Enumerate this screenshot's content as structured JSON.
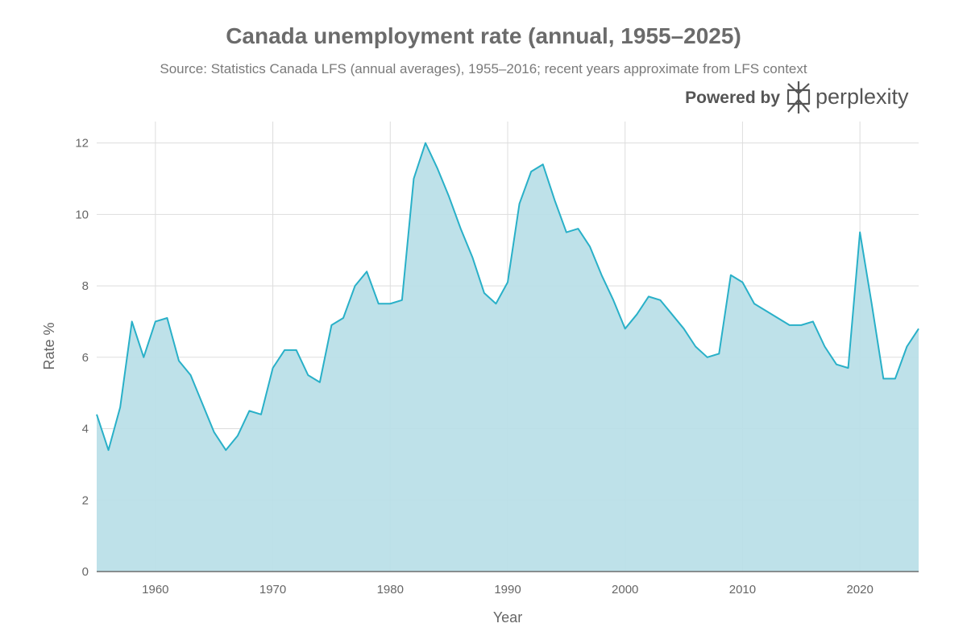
{
  "chart_data": {
    "type": "area",
    "title": "Canada unemployment rate (annual, 1955–2025)",
    "subtitle": "Source: Statistics Canada LFS (annual averages), 1955–2016; recent years approximate from LFS context",
    "xlabel": "Year",
    "ylabel": "Rate %",
    "xlim": [
      1955,
      2025
    ],
    "ylim": [
      0,
      12.6
    ],
    "xticks": [
      1960,
      1970,
      1980,
      1990,
      2000,
      2010,
      2020
    ],
    "yticks": [
      0,
      2,
      4,
      6,
      8,
      10,
      12
    ],
    "grid": true,
    "series": [
      {
        "name": "Rate %",
        "color": "#29b0c8",
        "fill": "#b9dee7",
        "x": [
          1955,
          1956,
          1957,
          1958,
          1959,
          1960,
          1961,
          1962,
          1963,
          1964,
          1965,
          1966,
          1967,
          1968,
          1969,
          1970,
          1971,
          1972,
          1973,
          1974,
          1975,
          1976,
          1977,
          1978,
          1979,
          1980,
          1981,
          1982,
          1983,
          1984,
          1985,
          1986,
          1987,
          1988,
          1989,
          1990,
          1991,
          1992,
          1993,
          1994,
          1995,
          1996,
          1997,
          1998,
          1999,
          2000,
          2001,
          2002,
          2003,
          2004,
          2005,
          2006,
          2007,
          2008,
          2009,
          2010,
          2011,
          2012,
          2013,
          2014,
          2015,
          2016,
          2017,
          2018,
          2019,
          2020,
          2021,
          2022,
          2023,
          2024,
          2025
        ],
        "y": [
          4.4,
          3.4,
          4.6,
          7.0,
          6.0,
          7.0,
          7.1,
          5.9,
          5.5,
          4.7,
          3.9,
          3.4,
          3.8,
          4.5,
          4.4,
          5.7,
          6.2,
          6.2,
          5.5,
          5.3,
          6.9,
          7.1,
          8.0,
          8.4,
          7.5,
          7.5,
          7.6,
          11.0,
          12.0,
          11.3,
          10.5,
          9.6,
          8.8,
          7.8,
          7.5,
          8.1,
          10.3,
          11.2,
          11.4,
          10.4,
          9.5,
          9.6,
          9.1,
          8.3,
          7.6,
          6.8,
          7.2,
          7.7,
          7.6,
          7.2,
          6.8,
          6.3,
          6.0,
          6.1,
          8.3,
          8.1,
          7.5,
          7.3,
          7.1,
          6.9,
          6.9,
          7.0,
          6.3,
          5.8,
          5.7,
          9.5,
          7.5,
          5.4,
          5.4,
          6.3,
          6.8
        ]
      }
    ]
  },
  "branding": {
    "powered_label": "Powered by",
    "brand_name": "perplexity",
    "logo_icon": "perplexity-logo-icon"
  }
}
